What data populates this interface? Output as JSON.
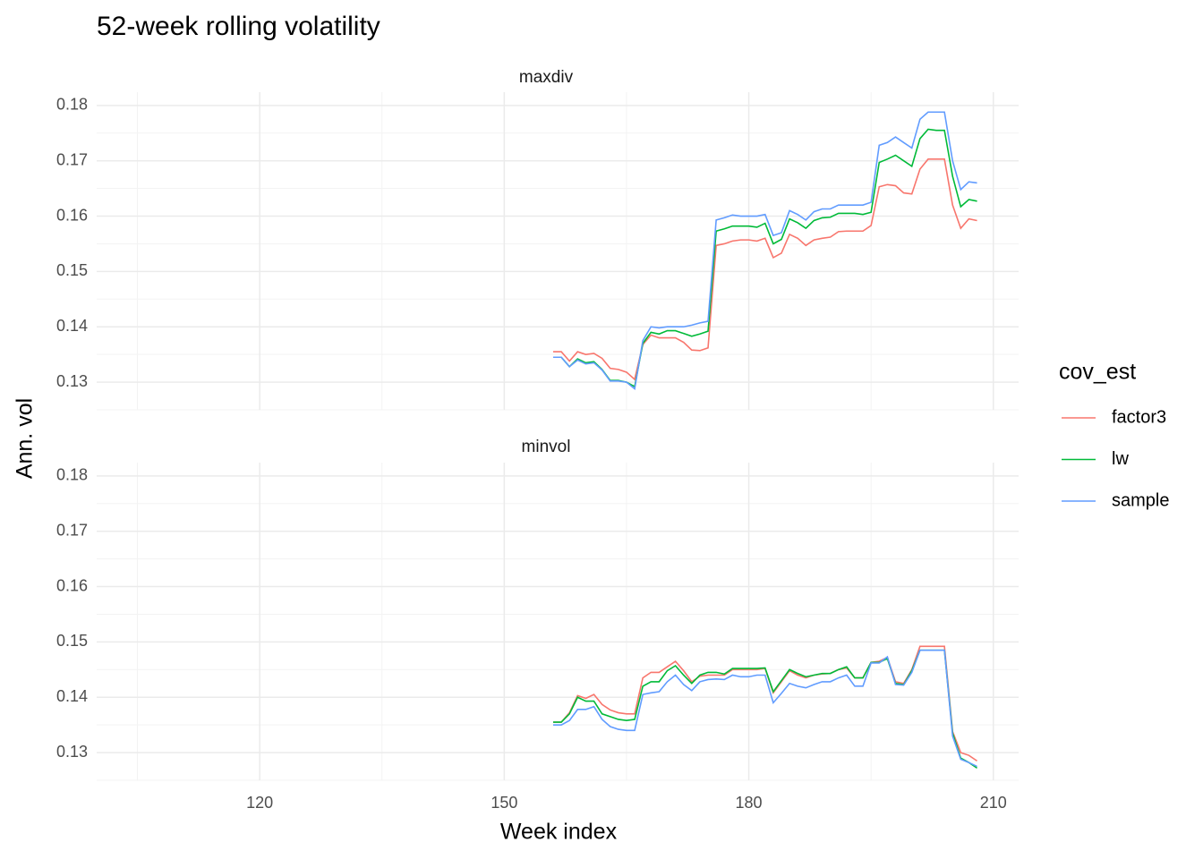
{
  "title": "52-week rolling volatility",
  "x_label": "Week index",
  "y_label": "Ann. vol",
  "legend_title": "cov_est",
  "chart_data": [
    {
      "type": "line",
      "facet": "maxdiv",
      "x": [
        156,
        157,
        158,
        159,
        160,
        161,
        162,
        163,
        164,
        165,
        166,
        167,
        168,
        169,
        170,
        171,
        172,
        173,
        174,
        175,
        176,
        177,
        178,
        179,
        180,
        181,
        182,
        183,
        184,
        185,
        186,
        187,
        188,
        189,
        190,
        191,
        192,
        193,
        194,
        195,
        196,
        197,
        198,
        199,
        200,
        201,
        202,
        203,
        204,
        205,
        206,
        207,
        208
      ],
      "xlim": [
        100,
        213.1
      ],
      "xticks": [
        120,
        150,
        180,
        210
      ],
      "ylim": [
        0.125,
        0.1824
      ],
      "yticks": [
        0.13,
        0.14,
        0.15,
        0.16,
        0.17,
        0.18
      ],
      "grid": true,
      "series": [
        {
          "name": "factor3",
          "color": "#F8766D",
          "values": [
            0.1355,
            0.1355,
            0.1338,
            0.1355,
            0.135,
            0.1352,
            0.1343,
            0.1325,
            0.1323,
            0.1318,
            0.1305,
            0.1368,
            0.1385,
            0.138,
            0.138,
            0.138,
            0.1372,
            0.1358,
            0.1357,
            0.1362,
            0.1547,
            0.155,
            0.1555,
            0.1557,
            0.1557,
            0.1555,
            0.156,
            0.1525,
            0.1533,
            0.1567,
            0.156,
            0.1547,
            0.1557,
            0.156,
            0.1562,
            0.1572,
            0.1573,
            0.1573,
            0.1573,
            0.1583,
            0.1653,
            0.1657,
            0.1655,
            0.1642,
            0.164,
            0.1685,
            0.1703,
            0.1703,
            0.1703,
            0.162,
            0.1578,
            0.1595,
            0.1592
          ]
        },
        {
          "name": "lw",
          "color": "#00BA38",
          "values": [
            0.1345,
            0.1345,
            0.1328,
            0.1342,
            0.1335,
            0.1337,
            0.1323,
            0.1303,
            0.1303,
            0.13,
            0.1292,
            0.137,
            0.139,
            0.1387,
            0.1393,
            0.1393,
            0.1388,
            0.1383,
            0.1387,
            0.1392,
            0.1573,
            0.1577,
            0.1582,
            0.1582,
            0.1582,
            0.158,
            0.1587,
            0.155,
            0.1558,
            0.1595,
            0.1588,
            0.1578,
            0.1592,
            0.1597,
            0.1598,
            0.1605,
            0.1605,
            0.1605,
            0.1603,
            0.1607,
            0.1697,
            0.1703,
            0.171,
            0.17,
            0.169,
            0.174,
            0.1757,
            0.1755,
            0.1755,
            0.1672,
            0.1617,
            0.163,
            0.1627
          ]
        },
        {
          "name": "sample",
          "color": "#619CFF",
          "values": [
            0.1345,
            0.1345,
            0.1328,
            0.134,
            0.1333,
            0.1335,
            0.1322,
            0.1302,
            0.1302,
            0.13,
            0.1288,
            0.1375,
            0.14,
            0.1398,
            0.14,
            0.14,
            0.14,
            0.1403,
            0.1407,
            0.141,
            0.1593,
            0.1597,
            0.1602,
            0.16,
            0.16,
            0.16,
            0.1603,
            0.1565,
            0.157,
            0.161,
            0.1603,
            0.1593,
            0.1608,
            0.1613,
            0.1613,
            0.162,
            0.162,
            0.162,
            0.162,
            0.1625,
            0.1728,
            0.1733,
            0.1743,
            0.1733,
            0.1723,
            0.1775,
            0.1788,
            0.1788,
            0.1788,
            0.17,
            0.1648,
            0.1662,
            0.166
          ]
        }
      ]
    },
    {
      "type": "line",
      "facet": "minvol",
      "x": [
        156,
        157,
        158,
        159,
        160,
        161,
        162,
        163,
        164,
        165,
        166,
        167,
        168,
        169,
        170,
        171,
        172,
        173,
        174,
        175,
        176,
        177,
        178,
        179,
        180,
        181,
        182,
        183,
        184,
        185,
        186,
        187,
        188,
        189,
        190,
        191,
        192,
        193,
        194,
        195,
        196,
        197,
        198,
        199,
        200,
        201,
        202,
        203,
        204,
        205,
        206,
        207,
        208
      ],
      "xlim": [
        100,
        213.1
      ],
      "xticks": [
        120,
        150,
        180,
        210
      ],
      "ylim": [
        0.125,
        0.1824
      ],
      "yticks": [
        0.13,
        0.14,
        0.15,
        0.16,
        0.17,
        0.18
      ],
      "grid": true,
      "series": [
        {
          "name": "factor3",
          "color": "#F8766D",
          "values": [
            0.1355,
            0.1355,
            0.1372,
            0.1403,
            0.1398,
            0.1405,
            0.1387,
            0.1377,
            0.1372,
            0.137,
            0.137,
            0.1435,
            0.1445,
            0.1445,
            0.1455,
            0.1465,
            0.1448,
            0.1428,
            0.1438,
            0.144,
            0.144,
            0.144,
            0.145,
            0.145,
            0.145,
            0.145,
            0.1452,
            0.1408,
            0.1428,
            0.1448,
            0.144,
            0.1435,
            0.144,
            0.1442,
            0.1443,
            0.145,
            0.1453,
            0.1435,
            0.1435,
            0.1463,
            0.1465,
            0.1472,
            0.1428,
            0.1425,
            0.145,
            0.1492,
            0.1492,
            0.1492,
            0.1492,
            0.1338,
            0.13,
            0.1295,
            0.1285
          ]
        },
        {
          "name": "lw",
          "color": "#00BA38",
          "values": [
            0.1355,
            0.1355,
            0.137,
            0.14,
            0.1393,
            0.1393,
            0.137,
            0.1365,
            0.136,
            0.1358,
            0.136,
            0.142,
            0.1428,
            0.1428,
            0.1448,
            0.1457,
            0.144,
            0.1425,
            0.144,
            0.1445,
            0.1445,
            0.1442,
            0.1452,
            0.1452,
            0.1452,
            0.1452,
            0.1453,
            0.141,
            0.143,
            0.145,
            0.1443,
            0.1437,
            0.144,
            0.1443,
            0.1443,
            0.145,
            0.1455,
            0.1435,
            0.1435,
            0.1463,
            0.1463,
            0.147,
            0.1425,
            0.1423,
            0.1448,
            0.1485,
            0.1485,
            0.1485,
            0.1485,
            0.1335,
            0.129,
            0.1282,
            0.1272
          ]
        },
        {
          "name": "sample",
          "color": "#619CFF",
          "values": [
            0.135,
            0.135,
            0.1358,
            0.1378,
            0.1378,
            0.1383,
            0.136,
            0.1347,
            0.1342,
            0.134,
            0.134,
            0.1405,
            0.1408,
            0.141,
            0.1428,
            0.144,
            0.1423,
            0.1412,
            0.1428,
            0.1432,
            0.1433,
            0.1432,
            0.144,
            0.1437,
            0.1437,
            0.144,
            0.144,
            0.139,
            0.1407,
            0.1425,
            0.142,
            0.1417,
            0.1423,
            0.1428,
            0.1428,
            0.1435,
            0.144,
            0.142,
            0.142,
            0.1462,
            0.1462,
            0.1473,
            0.1423,
            0.1422,
            0.1445,
            0.1485,
            0.1485,
            0.1485,
            0.1485,
            0.133,
            0.1288,
            0.1282,
            0.1275
          ]
        }
      ]
    }
  ]
}
